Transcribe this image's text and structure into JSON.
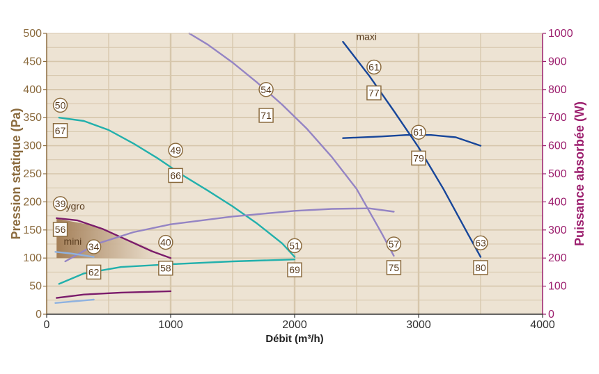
{
  "chart_data": {
    "type": "line",
    "xlabel": "Débit (m³/h)",
    "ylabel_left": "Pression statique (Pa)",
    "ylabel_right": "Puissance absorbée (W)",
    "xlim": [
      0,
      4000
    ],
    "ylim_left": [
      0,
      500
    ],
    "ylim_right": [
      0,
      1000
    ],
    "x_ticks": [
      0,
      1000,
      2000,
      3000,
      4000
    ],
    "y_left_ticks": [
      0,
      50,
      100,
      150,
      200,
      250,
      300,
      350,
      400,
      450,
      500
    ],
    "y_right_ticks": [
      0,
      100,
      200,
      300,
      400,
      500,
      600,
      700,
      800,
      900,
      1000
    ],
    "grid": true,
    "colors": {
      "background": "#ede3d3",
      "grid": "#d6c6ab",
      "left_axis": "#8b6b3e",
      "right_axis": "#9c1f6e",
      "teal": "#22b0ac",
      "purple": "#7b1c6b",
      "lavender": "#9484c4",
      "light_blue": "#8fb2e0",
      "navy": "#17469a",
      "marker": "#8b6b3e"
    },
    "shaded_region": {
      "x": [
        80,
        1000
      ],
      "y": [
        100,
        170
      ],
      "x_boundary": [
        80,
        330,
        580,
        830,
        1000
      ],
      "y_boundary": [
        170,
        160,
        140,
        118,
        100
      ]
    },
    "series": [
      {
        "color": "teal",
        "axis": "left",
        "x": [
          100,
          300,
          500,
          700,
          900,
          1100,
          1300,
          1500,
          1700,
          1900,
          2000
        ],
        "y": [
          350,
          344,
          328,
          304,
          277,
          247,
          220,
          192,
          161,
          126,
          102
        ]
      },
      {
        "color": "teal",
        "axis": "right",
        "x": [
          100,
          300,
          600,
          1000,
          1500,
          2000
        ],
        "y": [
          108,
          145,
          168,
          178,
          188,
          195
        ]
      },
      {
        "color": "purple",
        "axis": "left",
        "x": [
          80,
          250,
          450,
          650,
          850,
          1000
        ],
        "y": [
          171,
          167,
          152,
          132,
          112,
          100
        ]
      },
      {
        "color": "purple",
        "axis": "right",
        "x": [
          80,
          300,
          600,
          1000
        ],
        "y": [
          58,
          70,
          77,
          82
        ]
      },
      {
        "color": "lavender",
        "axis": "left",
        "x": [
          1150,
          1300,
          1500,
          1700,
          1900,
          2100,
          2300,
          2500,
          2700,
          2800
        ],
        "y": [
          500,
          480,
          448,
          412,
          373,
          330,
          280,
          223,
          145,
          104
        ]
      },
      {
        "color": "lavender",
        "axis": "right",
        "x": [
          150,
          400,
          700,
          1000,
          1500,
          2000,
          2300,
          2600,
          2800
        ],
        "y": [
          188,
          250,
          292,
          320,
          348,
          368,
          375,
          377,
          365
        ]
      },
      {
        "color": "light_blue",
        "axis": "left",
        "x": [
          70,
          200,
          380
        ],
        "y": [
          111,
          108,
          102
        ]
      },
      {
        "color": "light_blue",
        "axis": "right",
        "x": [
          70,
          200,
          380
        ],
        "y": [
          40,
          45,
          52
        ]
      },
      {
        "color": "navy",
        "axis": "left",
        "x": [
          2390,
          2600,
          2800,
          3000,
          3200,
          3400,
          3500
        ],
        "y": [
          485,
          425,
          362,
          297,
          223,
          142,
          102
        ]
      },
      {
        "color": "navy",
        "axis": "right",
        "x": [
          2390,
          2700,
          2900,
          3100,
          3300,
          3500
        ],
        "y": [
          627,
          633,
          638,
          638,
          630,
          600
        ]
      }
    ],
    "circle_markers": [
      {
        "label": "50",
        "x": 110,
        "y": 372
      },
      {
        "label": "39",
        "x": 110,
        "y": 197
      },
      {
        "label": "34",
        "x": 380,
        "y": 120
      },
      {
        "label": "40",
        "x": 960,
        "y": 128
      },
      {
        "label": "49",
        "x": 1040,
        "y": 292
      },
      {
        "label": "54",
        "x": 1770,
        "y": 400
      },
      {
        "label": "51",
        "x": 2000,
        "y": 122
      },
      {
        "label": "57",
        "x": 2800,
        "y": 125
      },
      {
        "label": "61",
        "x": 2640,
        "y": 440
      },
      {
        "label": "61",
        "x": 3000,
        "y": 324
      },
      {
        "label": "63",
        "x": 3500,
        "y": 127
      }
    ],
    "square_markers": [
      {
        "label": "67",
        "x": 110,
        "y": 327
      },
      {
        "label": "56",
        "x": 110,
        "y": 151
      },
      {
        "label": "62",
        "x": 380,
        "y": 75
      },
      {
        "label": "58",
        "x": 960,
        "y": 82
      },
      {
        "label": "66",
        "x": 1040,
        "y": 247
      },
      {
        "label": "71",
        "x": 1770,
        "y": 354
      },
      {
        "label": "69",
        "x": 2000,
        "y": 79
      },
      {
        "label": "75",
        "x": 2800,
        "y": 83
      },
      {
        "label": "77",
        "x": 2640,
        "y": 394
      },
      {
        "label": "79",
        "x": 3000,
        "y": 278
      },
      {
        "label": "80",
        "x": 3500,
        "y": 83
      }
    ],
    "annotations": [
      {
        "text": "hygro",
        "x": 210,
        "y": 186
      },
      {
        "text": "mini",
        "x": 210,
        "y": 124
      },
      {
        "text": "maxi",
        "x": 2580,
        "y": 488
      }
    ]
  }
}
